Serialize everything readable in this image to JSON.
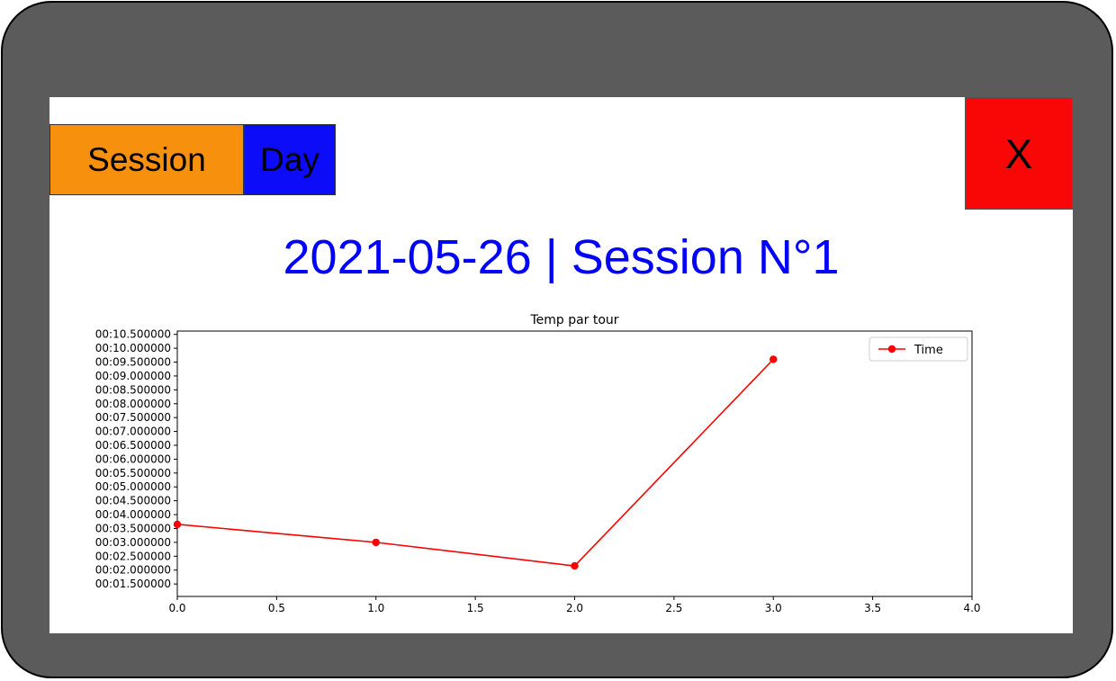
{
  "toolbar": {
    "session_label": "Session",
    "day_label": "Day",
    "close_label": "X",
    "colors": {
      "session": "#f7900c",
      "day": "#0c0cf9",
      "close": "#f90707"
    }
  },
  "header": {
    "title": "2021-05-26 | Session N°1",
    "color": "#0000ff"
  },
  "frame": {
    "bezel_color": "#5b5b5b",
    "screen_color": "#ffffff"
  },
  "chart_data": {
    "type": "line",
    "title": "Temp par tour",
    "xlabel": "",
    "ylabel": "",
    "xlim": [
      0.0,
      4.0
    ],
    "ylim": [
      1.05,
      10.62
    ],
    "x_ticks": [
      "0.0",
      "0.5",
      "1.0",
      "1.5",
      "2.0",
      "2.5",
      "3.0",
      "3.5",
      "4.0"
    ],
    "y_ticks": [
      "00:01.500000",
      "00:02.000000",
      "00:02.500000",
      "00:03.000000",
      "00:03.500000",
      "00:04.000000",
      "00:04.500000",
      "00:05.000000",
      "00:05.500000",
      "00:06.000000",
      "00:06.500000",
      "00:07.000000",
      "00:07.500000",
      "00:08.000000",
      "00:08.500000",
      "00:09.000000",
      "00:09.500000",
      "00:10.000000",
      "00:10.500000"
    ],
    "series": [
      {
        "name": "Time",
        "color": "#ff0000",
        "marker": "circle",
        "x": [
          0,
          1,
          2,
          3
        ],
        "y": [
          3.65,
          3.0,
          2.15,
          9.6
        ]
      }
    ],
    "legend_position": "top-right",
    "grid": false
  }
}
